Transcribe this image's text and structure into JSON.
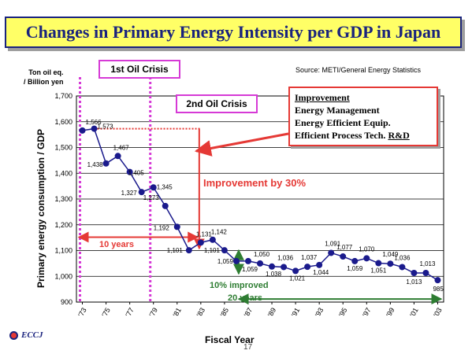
{
  "title": "Changes in Primary Energy Intensity per GDP in Japan",
  "source": "Source: METI/General  Energy Statistics",
  "y_unit": [
    "Ton oil eq.",
    "/ Billion yen"
  ],
  "crises": {
    "first": "1st Oil Crisis",
    "second": "2nd Oil Crisis"
  },
  "improvement_box": {
    "heading": "Improvement",
    "items": [
      "Energy Management",
      "Energy Efficient Equip.",
      "Efficient Process Tech. "
    ],
    "rd": "R&D"
  },
  "annotations": {
    "improvement_30": "Improvement by 30%",
    "ten_years": "10 years",
    "ten_pct_improved": "10% improved",
    "twenty_years": "20 years"
  },
  "footer": {
    "logo_text": "ECCJ",
    "page_number": "17"
  },
  "colors": {
    "series": "#1a1a8c",
    "crisis": "#d63ad6",
    "arrow_red": "#e53935",
    "arrow_green": "#2e7d32",
    "title_bg": "#ffff66"
  },
  "chart_data": {
    "type": "line",
    "title": "",
    "xlabel": "Fiscal Year",
    "ylabel": "Primary energy consumption / GDP",
    "ylim": [
      900,
      1700
    ],
    "yticks": [
      900,
      1000,
      1100,
      1200,
      1300,
      1400,
      1500,
      1600,
      1700
    ],
    "xlim": [
      1973,
      2003
    ],
    "xtick_labels": [
      "'73",
      "'75",
      "'77",
      "'79",
      "'81",
      "'83",
      "'85",
      "'87",
      "'89",
      "'91",
      "'93",
      "'95",
      "'97",
      "'99",
      "'01",
      "'03"
    ],
    "grid": true,
    "series": [
      {
        "name": "",
        "x": [
          1973,
          1974,
          1975,
          1976,
          1977,
          1978,
          1979,
          1980,
          1981,
          1982,
          1983,
          1984,
          1985,
          1986,
          1987,
          1988,
          1989,
          1990,
          1991,
          1992,
          1993,
          1994,
          1995,
          1996,
          1997,
          1998,
          1999,
          2000,
          2001,
          2002,
          2003
        ],
        "values": [
          1566,
          1573,
          1438,
          1467,
          1405,
          1327,
          1345,
          1273,
          1192,
          1101,
          1131,
          1142,
          1101,
          1059,
          1059,
          1050,
          1038,
          1036,
          1021,
          1037,
          1044,
          1091,
          1077,
          1059,
          1070,
          1051,
          1049,
          1036,
          1013,
          1013,
          985
        ],
        "point_labels": [
          "1,566",
          "1,573",
          "1,438",
          "1,467",
          "1,405",
          "1,327",
          "1,345",
          "1,273",
          "1,192",
          "1,101",
          "1,131",
          "1,142",
          "1,101",
          "1,059",
          "1,059",
          "1,050",
          "1,038",
          "1,036",
          "1,021",
          "1,037",
          "1,044",
          "1,091",
          "1,077",
          "1,059",
          "1,070",
          "1,051",
          "1,049",
          "1,036",
          "1,013",
          "1,013",
          "985"
        ]
      }
    ]
  }
}
